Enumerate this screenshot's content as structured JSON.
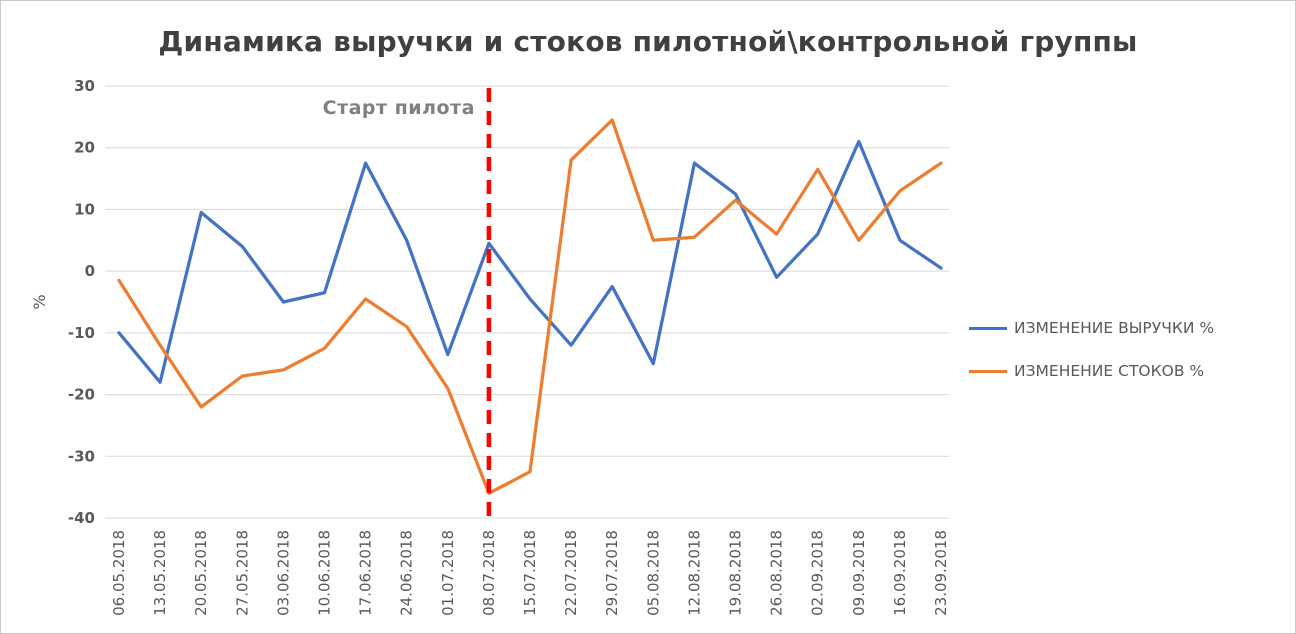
{
  "chart_data": {
    "type": "line",
    "title": "Динамика выручки и стоков пилотной\\контрольной группы",
    "ylabel": "%",
    "ylim": [
      -40,
      30
    ],
    "ytick_step": 10,
    "grid": true,
    "legend_position": "right",
    "annotation": {
      "text": "Старт пилота",
      "x_category": "08.07.2018"
    },
    "categories": [
      "06.05.2018",
      "13.05.2018",
      "20.05.2018",
      "27.05.2018",
      "03.06.2018",
      "10.06.2018",
      "17.06.2018",
      "24.06.2018",
      "01.07.2018",
      "08.07.2018",
      "15.07.2018",
      "22.07.2018",
      "29.07.2018",
      "05.08.2018",
      "12.08.2018",
      "19.08.2018",
      "26.08.2018",
      "02.09.2018",
      "09.09.2018",
      "16.09.2018",
      "23.09.2018"
    ],
    "series": [
      {
        "name": "ИЗМЕНЕНИЕ ВЫРУЧКИ %",
        "color": "#4472C4",
        "values": [
          -10,
          -18,
          9.5,
          4,
          -5,
          -3.5,
          17.5,
          5,
          -13.5,
          4.5,
          -4.5,
          -12,
          -2.5,
          -15,
          17.5,
          12.5,
          -1,
          6,
          21,
          5,
          0.5
        ]
      },
      {
        "name": "ИЗМЕНЕНИЕ СТОКОВ %",
        "color": "#ED7D31",
        "values": [
          -1.5,
          -12,
          -22,
          -17,
          -16,
          -12.5,
          -4.5,
          -9,
          -19,
          -36,
          -32.5,
          18,
          24.5,
          5,
          5.5,
          11.5,
          6,
          16.5,
          5,
          13,
          17.5
        ]
      }
    ],
    "colors": {
      "grid": "#D9D9D9",
      "axis_text": "#595959",
      "title_text": "#404040",
      "annotation_line": "#FF0000",
      "annotation_text": "#808080"
    }
  }
}
